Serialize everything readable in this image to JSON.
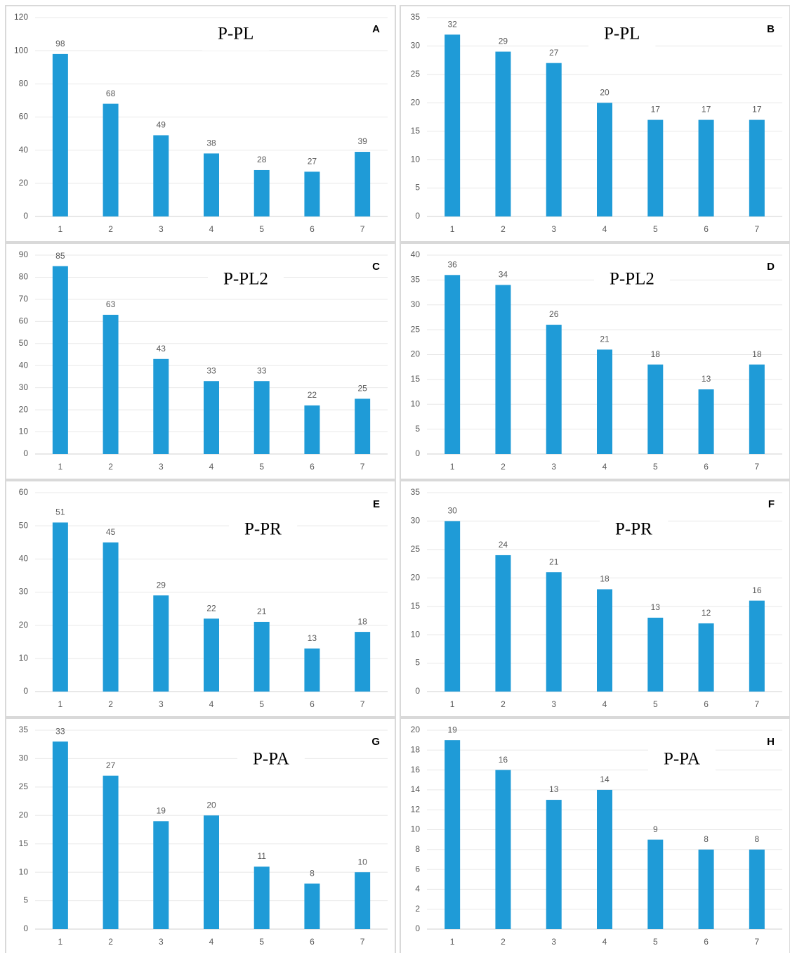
{
  "chart_data": [
    {
      "type": "bar",
      "title": "P-PL",
      "label": "A",
      "categories": [
        "1",
        "2",
        "3",
        "4",
        "5",
        "6",
        "7"
      ],
      "values": [
        98,
        68,
        49,
        38,
        28,
        27,
        39
      ],
      "color": "#1f9bd7",
      "ylim": [
        0,
        120
      ],
      "yticks": [
        0,
        20,
        40,
        60,
        80,
        100,
        120
      ],
      "grid": true
    },
    {
      "type": "bar",
      "title": "P-PL",
      "label": "B",
      "categories": [
        "1",
        "2",
        "3",
        "4",
        "5",
        "6",
        "7"
      ],
      "values": [
        32,
        29,
        27,
        20,
        17,
        17,
        17
      ],
      "color": "#1f9bd7",
      "ylim": [
        0,
        35
      ],
      "yticks": [
        0,
        5,
        10,
        15,
        20,
        25,
        30,
        35
      ],
      "grid": true
    },
    {
      "type": "bar",
      "title": "P-PL2",
      "label": "C",
      "categories": [
        "1",
        "2",
        "3",
        "4",
        "5",
        "6",
        "7"
      ],
      "values": [
        85,
        63,
        43,
        33,
        33,
        22,
        25
      ],
      "color": "#1f9bd7",
      "ylim": [
        0,
        90
      ],
      "yticks": [
        0,
        10,
        20,
        30,
        40,
        50,
        60,
        70,
        80,
        90
      ],
      "grid": true
    },
    {
      "type": "bar",
      "title": "P-PL2",
      "label": "D",
      "categories": [
        "1",
        "2",
        "3",
        "4",
        "5",
        "6",
        "7"
      ],
      "values": [
        36,
        34,
        26,
        21,
        18,
        13,
        18
      ],
      "color": "#1f9bd7",
      "ylim": [
        0,
        40
      ],
      "yticks": [
        0,
        5,
        10,
        15,
        20,
        25,
        30,
        35,
        40
      ],
      "grid": true
    },
    {
      "type": "bar",
      "title": "P-PR",
      "label": "E",
      "categories": [
        "1",
        "2",
        "3",
        "4",
        "5",
        "6",
        "7"
      ],
      "values": [
        51,
        45,
        29,
        22,
        21,
        13,
        18
      ],
      "color": "#1f9bd7",
      "ylim": [
        0,
        60
      ],
      "yticks": [
        0,
        10,
        20,
        30,
        40,
        50,
        60
      ],
      "grid": true
    },
    {
      "type": "bar",
      "title": "P-PR",
      "label": "F",
      "categories": [
        "1",
        "2",
        "3",
        "4",
        "5",
        "6",
        "7"
      ],
      "values": [
        30,
        24,
        21,
        18,
        13,
        12,
        16
      ],
      "color": "#1f9bd7",
      "ylim": [
        0,
        35
      ],
      "yticks": [
        0,
        5,
        10,
        15,
        20,
        25,
        30,
        35
      ],
      "grid": true
    },
    {
      "type": "bar",
      "title": "P-PA",
      "label": "G",
      "categories": [
        "1",
        "2",
        "3",
        "4",
        "5",
        "6",
        "7"
      ],
      "values": [
        33,
        27,
        19,
        20,
        11,
        8,
        10
      ],
      "color": "#1f9bd7",
      "ylim": [
        0,
        35
      ],
      "yticks": [
        0,
        5,
        10,
        15,
        20,
        25,
        30,
        35
      ],
      "grid": true
    },
    {
      "type": "bar",
      "title": "P-PA",
      "label": "H",
      "categories": [
        "1",
        "2",
        "3",
        "4",
        "5",
        "6",
        "7"
      ],
      "values": [
        19,
        16,
        13,
        14,
        9,
        8,
        8
      ],
      "color": "#1f9bd7",
      "ylim": [
        0,
        20
      ],
      "yticks": [
        0,
        2,
        4,
        6,
        8,
        10,
        12,
        14,
        16,
        18,
        20
      ],
      "grid": true
    }
  ]
}
